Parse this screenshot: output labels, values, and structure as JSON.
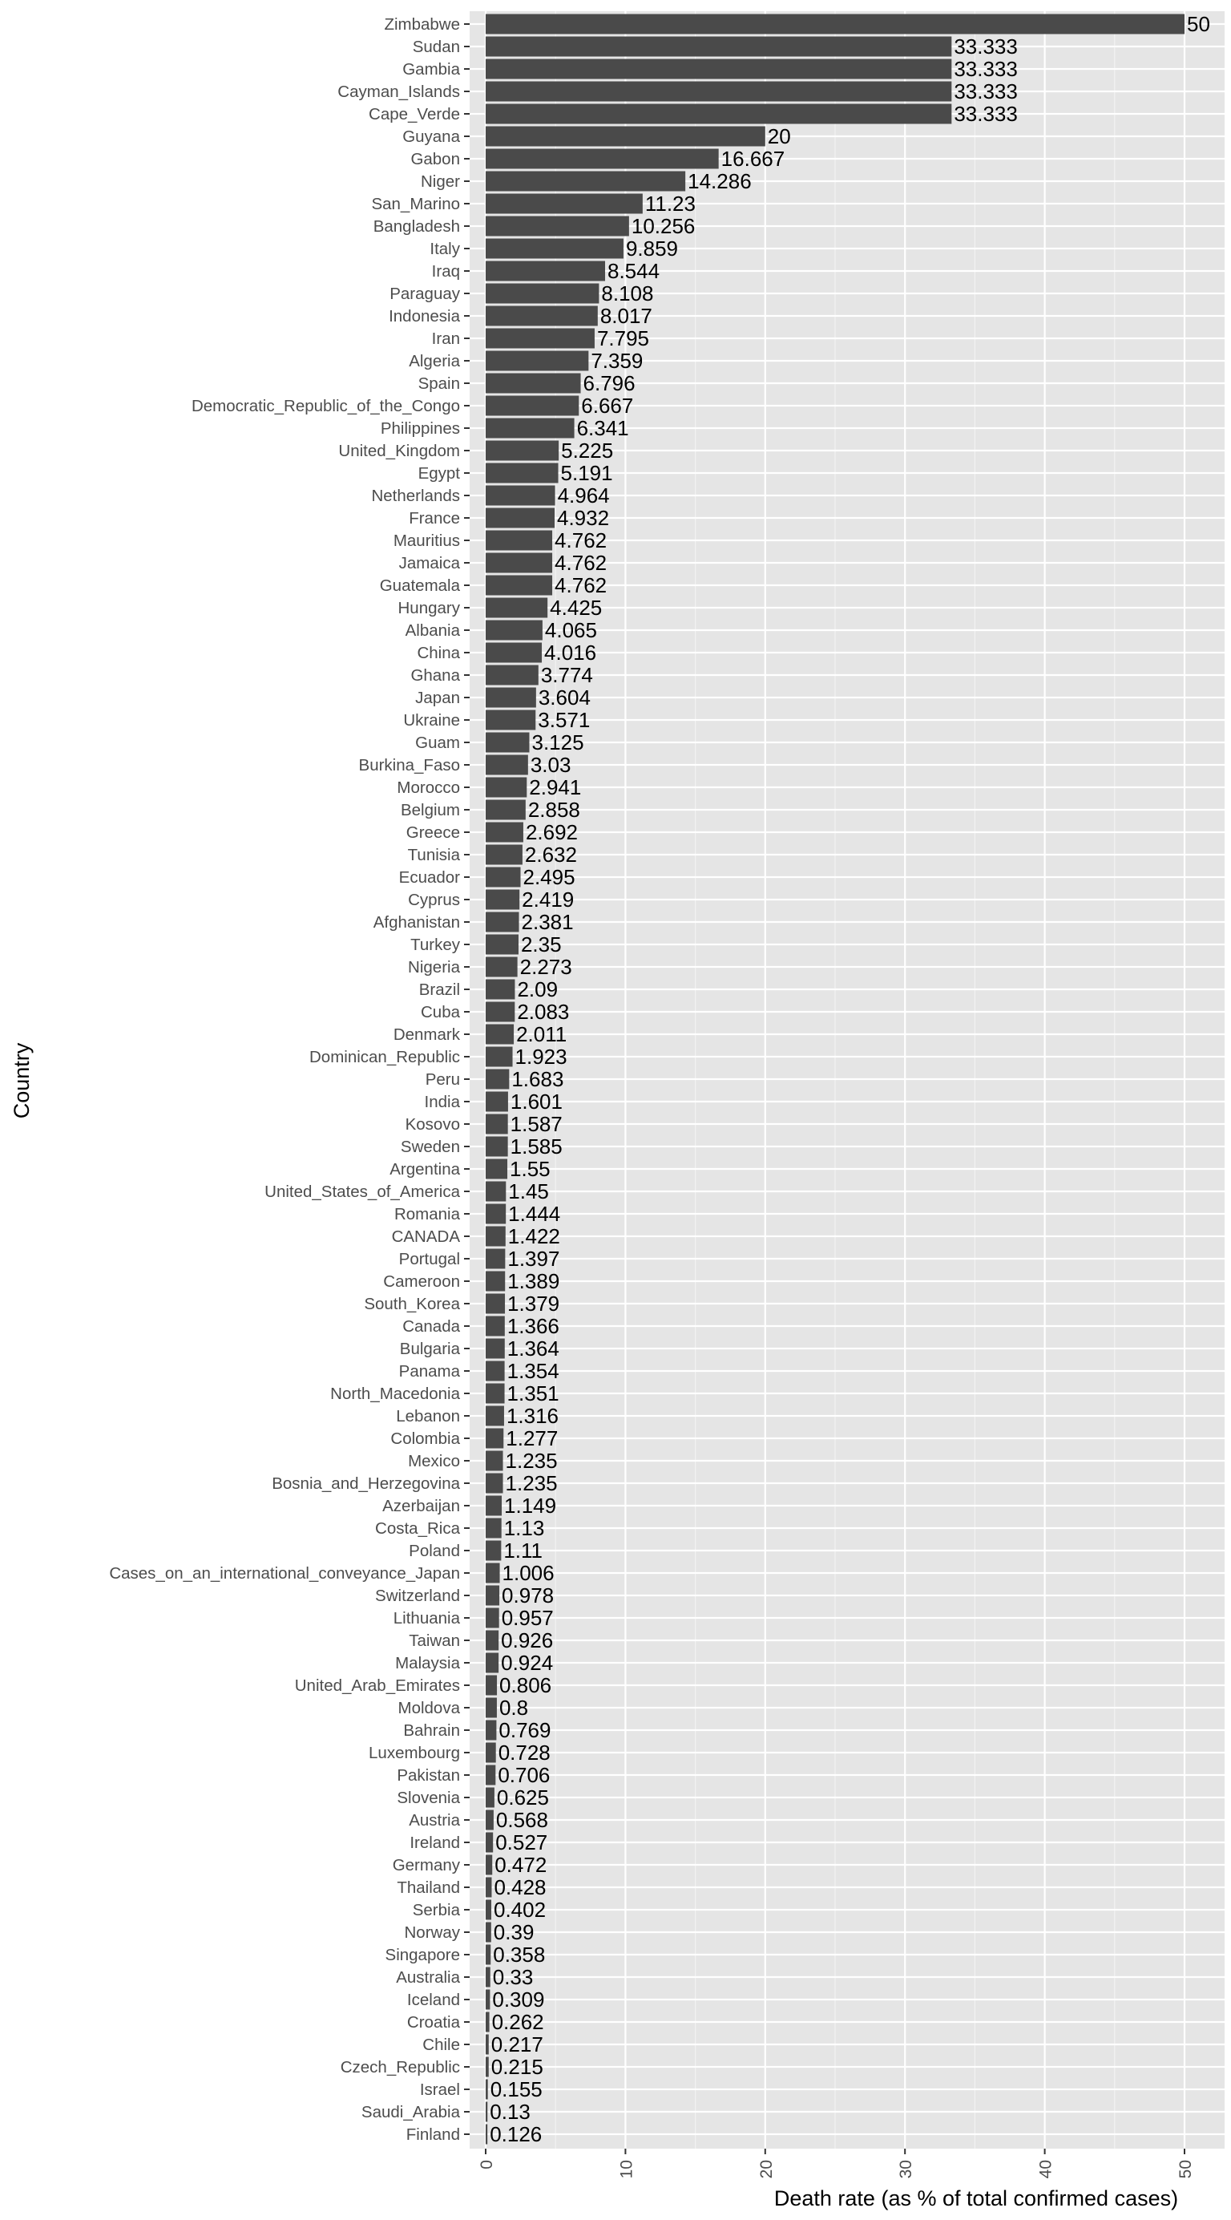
{
  "chart_data": {
    "type": "bar",
    "orientation": "horizontal",
    "xlabel": "Death rate (as % of total confirmed cases)",
    "ylabel": "Country",
    "xlim": [
      0,
      52.5
    ],
    "xticks": [
      0,
      10,
      20,
      30,
      40,
      50
    ],
    "grid": true,
    "legend": "none",
    "colors": {
      "panel_background": "#e5e5e5",
      "grid_major": "#ffffff",
      "bar": "#4a4a4a",
      "axis_text": "#4d4d4d",
      "label_text": "#000000"
    },
    "categories": [
      "Zimbabwe",
      "Sudan",
      "Gambia",
      "Cayman_Islands",
      "Cape_Verde",
      "Guyana",
      "Gabon",
      "Niger",
      "San_Marino",
      "Bangladesh",
      "Italy",
      "Iraq",
      "Paraguay",
      "Indonesia",
      "Iran",
      "Algeria",
      "Spain",
      "Democratic_Republic_of_the_Congo",
      "Philippines",
      "United_Kingdom",
      "Egypt",
      "Netherlands",
      "France",
      "Mauritius",
      "Jamaica",
      "Guatemala",
      "Hungary",
      "Albania",
      "China",
      "Ghana",
      "Japan",
      "Ukraine",
      "Guam",
      "Burkina_Faso",
      "Morocco",
      "Belgium",
      "Greece",
      "Tunisia",
      "Ecuador",
      "Cyprus",
      "Afghanistan",
      "Turkey",
      "Nigeria",
      "Brazil",
      "Cuba",
      "Denmark",
      "Dominican_Republic",
      "Peru",
      "India",
      "Kosovo",
      "Sweden",
      "Argentina",
      "United_States_of_America",
      "Romania",
      "CANADA",
      "Portugal",
      "Cameroon",
      "South_Korea",
      "Canada",
      "Bulgaria",
      "Panama",
      "North_Macedonia",
      "Lebanon",
      "Colombia",
      "Mexico",
      "Bosnia_and_Herzegovina",
      "Azerbaijan",
      "Costa_Rica",
      "Poland",
      "Cases_on_an_international_conveyance_Japan",
      "Switzerland",
      "Lithuania",
      "Taiwan",
      "Malaysia",
      "United_Arab_Emirates",
      "Moldova",
      "Bahrain",
      "Luxembourg",
      "Pakistan",
      "Slovenia",
      "Austria",
      "Ireland",
      "Germany",
      "Thailand",
      "Serbia",
      "Norway",
      "Singapore",
      "Australia",
      "Iceland",
      "Croatia",
      "Chile",
      "Czech_Republic",
      "Israel",
      "Saudi_Arabia",
      "Finland"
    ],
    "values": [
      50,
      33.333,
      33.333,
      33.333,
      33.333,
      20,
      16.667,
      14.286,
      11.23,
      10.256,
      9.859,
      8.544,
      8.108,
      8.017,
      7.795,
      7.359,
      6.796,
      6.667,
      6.341,
      5.225,
      5.191,
      4.964,
      4.932,
      4.762,
      4.762,
      4.762,
      4.425,
      4.065,
      4.016,
      3.774,
      3.604,
      3.571,
      3.125,
      3.03,
      2.941,
      2.858,
      2.692,
      2.632,
      2.495,
      2.419,
      2.381,
      2.35,
      2.273,
      2.09,
      2.083,
      2.011,
      1.923,
      1.683,
      1.601,
      1.587,
      1.585,
      1.55,
      1.45,
      1.444,
      1.422,
      1.397,
      1.389,
      1.379,
      1.366,
      1.364,
      1.354,
      1.351,
      1.316,
      1.277,
      1.235,
      1.235,
      1.149,
      1.13,
      1.11,
      1.006,
      0.978,
      0.957,
      0.926,
      0.924,
      0.806,
      0.8,
      0.769,
      0.728,
      0.706,
      0.625,
      0.568,
      0.527,
      0.472,
      0.428,
      0.402,
      0.39,
      0.358,
      0.33,
      0.309,
      0.262,
      0.217,
      0.215,
      0.155,
      0.13,
      0.126
    ],
    "value_labels": [
      "50",
      "33.333",
      "33.333",
      "33.333",
      "33.333",
      "20",
      "16.667",
      "14.286",
      "11.23",
      "10.256",
      "9.859",
      "8.544",
      "8.108",
      "8.017",
      "7.795",
      "7.359",
      "6.796",
      "6.667",
      "6.341",
      "5.225",
      "5.191",
      "4.964",
      "4.932",
      "4.762",
      "4.762",
      "4.762",
      "4.425",
      "4.065",
      "4.016",
      "3.774",
      "3.604",
      "3.571",
      "3.125",
      "3.03",
      "2.941",
      "2.858",
      "2.692",
      "2.632",
      "2.495",
      "2.419",
      "2.381",
      "2.35",
      "2.273",
      "2.09",
      "2.083",
      "2.011",
      "1.923",
      "1.683",
      "1.601",
      "1.587",
      "1.585",
      "1.55",
      "1.45",
      "1.444",
      "1.422",
      "1.397",
      "1.389",
      "1.379",
      "1.366",
      "1.364",
      "1.354",
      "1.351",
      "1.316",
      "1.277",
      "1.235",
      "1.235",
      "1.149",
      "1.13",
      "1.11",
      "1.006",
      "0.978",
      "0.957",
      "0.926",
      "0.924",
      "0.806",
      "0.8",
      "0.769",
      "0.728",
      "0.706",
      "0.625",
      "0.568",
      "0.527",
      "0.472",
      "0.428",
      "0.402",
      "0.39",
      "0.358",
      "0.33",
      "0.309",
      "0.262",
      "0.217",
      "0.215",
      "0.155",
      "0.13",
      "0.126"
    ]
  }
}
